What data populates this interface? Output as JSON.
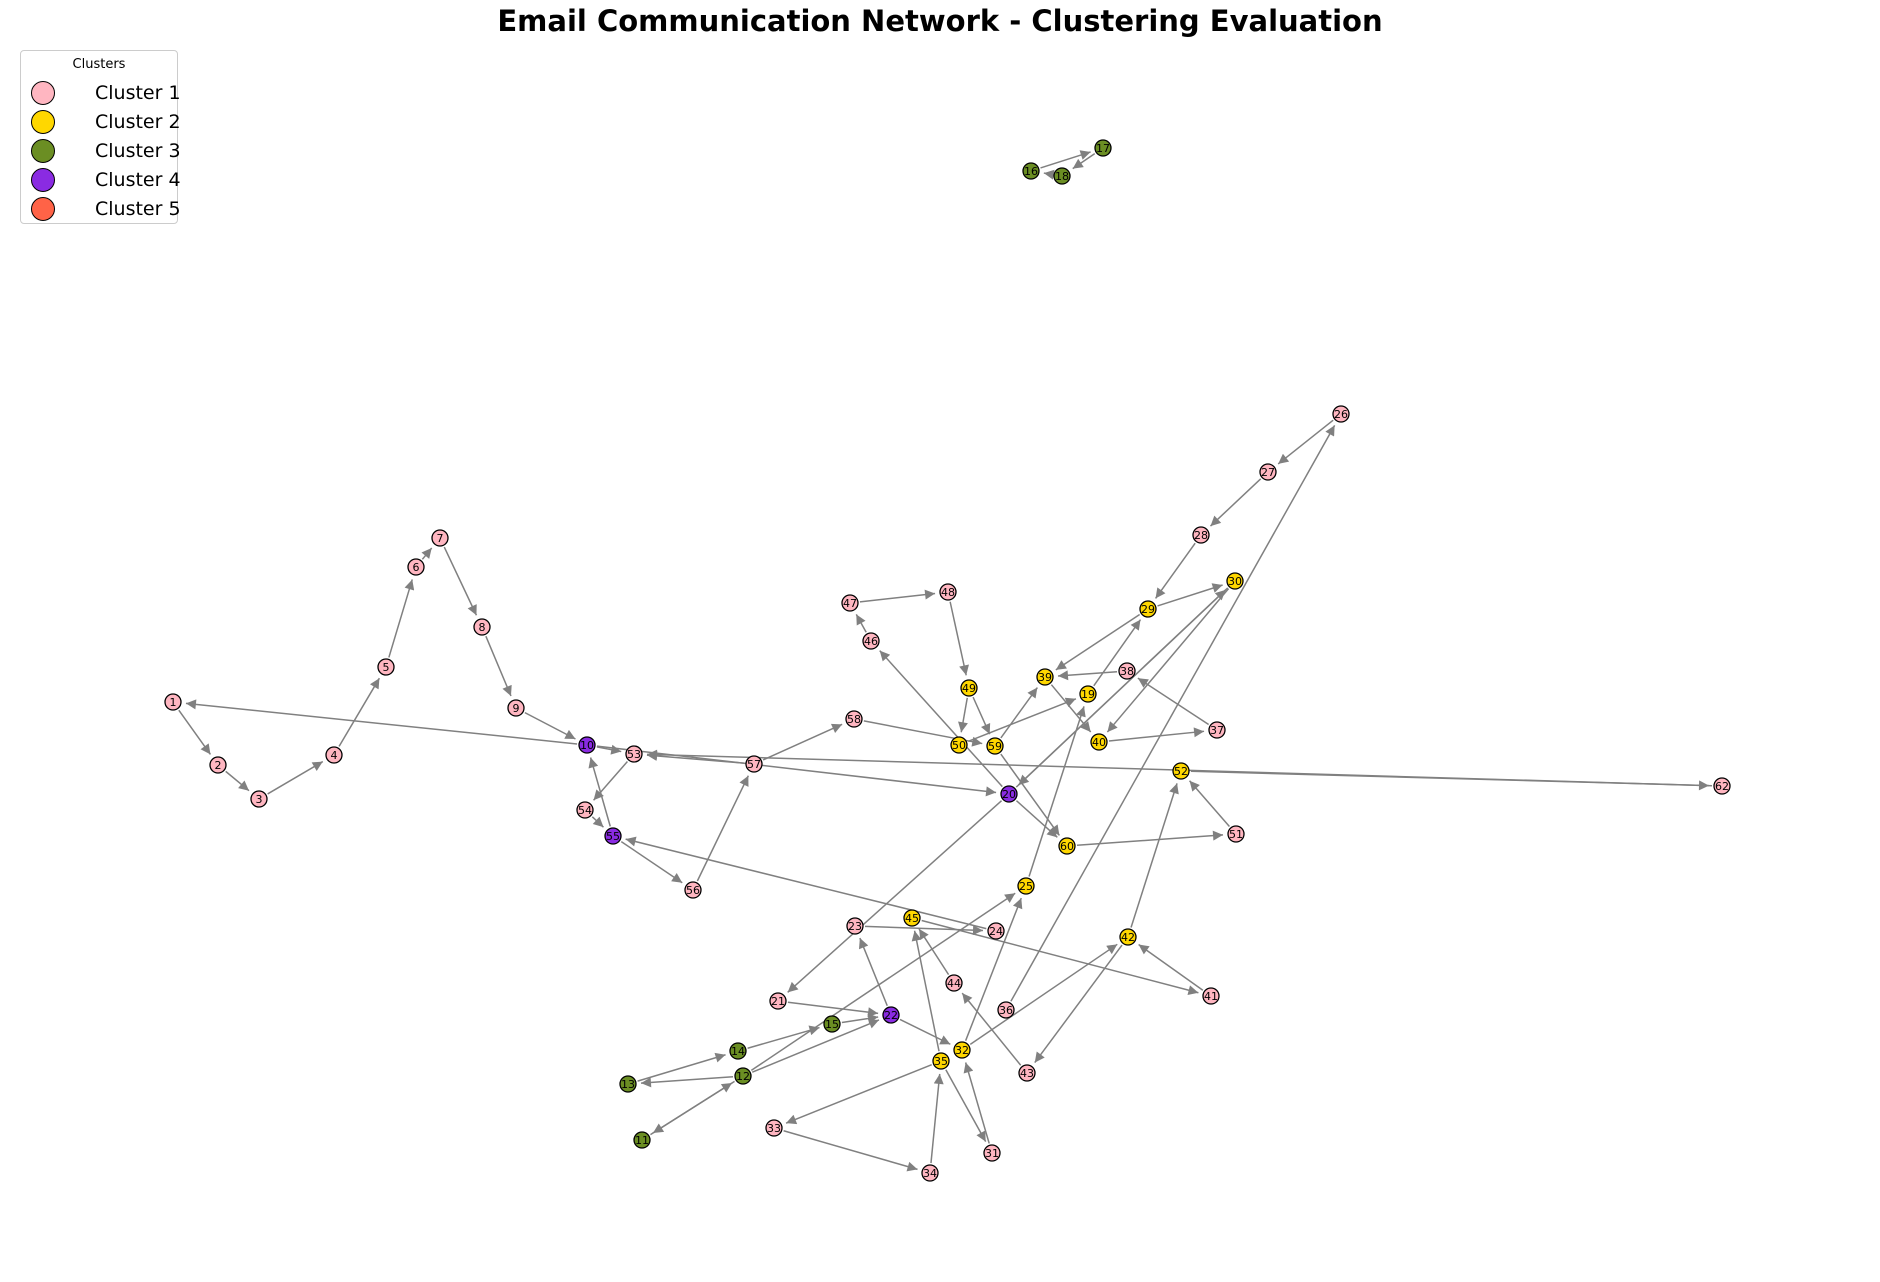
{
  "title": "Email Communication Network - Clustering Evaluation",
  "legend": {
    "title": "Clusters",
    "items": [
      {
        "label": "Cluster 1",
        "color": "#ffb6c1"
      },
      {
        "label": "Cluster 2",
        "color": "#ffd700"
      },
      {
        "label": "Cluster 3",
        "color": "#6b8e23"
      },
      {
        "label": "Cluster 4",
        "color": "#8a2be2"
      },
      {
        "label": "Cluster 5",
        "color": "#ff6347"
      }
    ]
  },
  "style": {
    "edge_color": "#808080",
    "node_border": "#000000"
  },
  "nodes": [
    {
      "id": "1",
      "cluster": 1
    },
    {
      "id": "2",
      "cluster": 1
    },
    {
      "id": "3",
      "cluster": 1
    },
    {
      "id": "4",
      "cluster": 1
    },
    {
      "id": "5",
      "cluster": 1
    },
    {
      "id": "6",
      "cluster": 1
    },
    {
      "id": "7",
      "cluster": 1
    },
    {
      "id": "8",
      "cluster": 1
    },
    {
      "id": "9",
      "cluster": 1
    },
    {
      "id": "10",
      "cluster": 4
    },
    {
      "id": "11",
      "cluster": 3
    },
    {
      "id": "12",
      "cluster": 3
    },
    {
      "id": "13",
      "cluster": 3
    },
    {
      "id": "14",
      "cluster": 3
    },
    {
      "id": "15",
      "cluster": 3
    },
    {
      "id": "16",
      "cluster": 3
    },
    {
      "id": "17",
      "cluster": 3
    },
    {
      "id": "18",
      "cluster": 3
    },
    {
      "id": "19",
      "cluster": 2
    },
    {
      "id": "20",
      "cluster": 4
    },
    {
      "id": "21",
      "cluster": 1
    },
    {
      "id": "22",
      "cluster": 4
    },
    {
      "id": "23",
      "cluster": 1
    },
    {
      "id": "24",
      "cluster": 1
    },
    {
      "id": "25",
      "cluster": 2
    },
    {
      "id": "26",
      "cluster": 1
    },
    {
      "id": "27",
      "cluster": 1
    },
    {
      "id": "28",
      "cluster": 1
    },
    {
      "id": "29",
      "cluster": 2
    },
    {
      "id": "30",
      "cluster": 2
    },
    {
      "id": "31",
      "cluster": 1
    },
    {
      "id": "32",
      "cluster": 2
    },
    {
      "id": "33",
      "cluster": 1
    },
    {
      "id": "34",
      "cluster": 1
    },
    {
      "id": "35",
      "cluster": 2
    },
    {
      "id": "36",
      "cluster": 1
    },
    {
      "id": "37",
      "cluster": 1
    },
    {
      "id": "38",
      "cluster": 1
    },
    {
      "id": "39",
      "cluster": 2
    },
    {
      "id": "40",
      "cluster": 2
    },
    {
      "id": "41",
      "cluster": 1
    },
    {
      "id": "42",
      "cluster": 2
    },
    {
      "id": "43",
      "cluster": 1
    },
    {
      "id": "44",
      "cluster": 1
    },
    {
      "id": "45",
      "cluster": 2
    },
    {
      "id": "46",
      "cluster": 1
    },
    {
      "id": "47",
      "cluster": 1
    },
    {
      "id": "48",
      "cluster": 1
    },
    {
      "id": "49",
      "cluster": 2
    },
    {
      "id": "50",
      "cluster": 2
    },
    {
      "id": "51",
      "cluster": 1
    },
    {
      "id": "52",
      "cluster": 2
    },
    {
      "id": "53",
      "cluster": 1
    },
    {
      "id": "54",
      "cluster": 1
    },
    {
      "id": "55",
      "cluster": 4
    },
    {
      "id": "56",
      "cluster": 1
    },
    {
      "id": "57",
      "cluster": 1
    },
    {
      "id": "58",
      "cluster": 1
    },
    {
      "id": "59",
      "cluster": 2
    },
    {
      "id": "60",
      "cluster": 2
    },
    {
      "id": "62",
      "cluster": 1
    }
  ],
  "edges": [
    [
      "1",
      "2"
    ],
    [
      "2",
      "3"
    ],
    [
      "3",
      "4"
    ],
    [
      "4",
      "5"
    ],
    [
      "5",
      "6"
    ],
    [
      "6",
      "7"
    ],
    [
      "7",
      "8"
    ],
    [
      "8",
      "9"
    ],
    [
      "9",
      "10"
    ],
    [
      "10",
      "1"
    ],
    [
      "10",
      "20"
    ],
    [
      "10",
      "53"
    ],
    [
      "55",
      "10"
    ],
    [
      "53",
      "54"
    ],
    [
      "54",
      "55"
    ],
    [
      "55",
      "56"
    ],
    [
      "56",
      "57"
    ],
    [
      "57",
      "58"
    ],
    [
      "57",
      "53"
    ],
    [
      "58",
      "59"
    ],
    [
      "62",
      "53"
    ],
    [
      "52",
      "62"
    ],
    [
      "51",
      "52"
    ],
    [
      "60",
      "51"
    ],
    [
      "59",
      "60"
    ],
    [
      "20",
      "60"
    ],
    [
      "20",
      "46"
    ],
    [
      "46",
      "47"
    ],
    [
      "47",
      "48"
    ],
    [
      "48",
      "49"
    ],
    [
      "49",
      "50"
    ],
    [
      "49",
      "59"
    ],
    [
      "50",
      "19"
    ],
    [
      "59",
      "39"
    ],
    [
      "38",
      "39"
    ],
    [
      "37",
      "38"
    ],
    [
      "40",
      "37"
    ],
    [
      "39",
      "40"
    ],
    [
      "19",
      "29"
    ],
    [
      "30",
      "20"
    ],
    [
      "20",
      "30"
    ],
    [
      "26",
      "27"
    ],
    [
      "27",
      "28"
    ],
    [
      "28",
      "29"
    ],
    [
      "29",
      "30"
    ],
    [
      "29",
      "39"
    ],
    [
      "30",
      "40"
    ],
    [
      "36",
      "26"
    ],
    [
      "20",
      "21"
    ],
    [
      "21",
      "22"
    ],
    [
      "22",
      "23"
    ],
    [
      "22",
      "32"
    ],
    [
      "23",
      "24"
    ],
    [
      "24",
      "55"
    ],
    [
      "45",
      "41"
    ],
    [
      "41",
      "42"
    ],
    [
      "42",
      "43"
    ],
    [
      "42",
      "52"
    ],
    [
      "43",
      "44"
    ],
    [
      "44",
      "45"
    ],
    [
      "35",
      "45"
    ],
    [
      "35",
      "33"
    ],
    [
      "33",
      "34"
    ],
    [
      "34",
      "35"
    ],
    [
      "35",
      "31"
    ],
    [
      "31",
      "32"
    ],
    [
      "32",
      "42"
    ],
    [
      "32",
      "25"
    ],
    [
      "25",
      "19"
    ],
    [
      "12",
      "25"
    ],
    [
      "12",
      "22"
    ],
    [
      "12",
      "13"
    ],
    [
      "13",
      "14"
    ],
    [
      "14",
      "15"
    ],
    [
      "12",
      "11"
    ],
    [
      "11",
      "12"
    ],
    [
      "15",
      "22"
    ],
    [
      "16",
      "17"
    ],
    [
      "17",
      "18"
    ],
    [
      "18",
      "16"
    ]
  ]
}
